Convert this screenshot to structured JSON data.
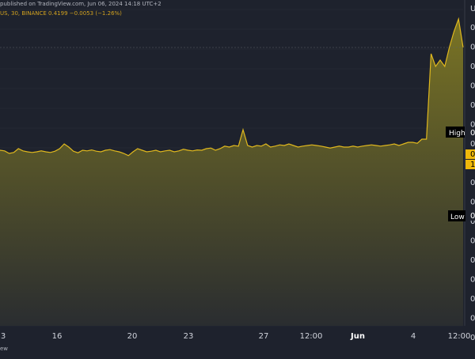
{
  "header": {
    "published": "published on TradingView.com, Jun 06, 2024 14:18 UTC+2",
    "symbol_line": "US, 30, BINANCE 0.4199 −0.0053 (−1.26%)"
  },
  "footer": {
    "text": "ew"
  },
  "colors": {
    "background": "#1e222d",
    "line": "#e0b81e",
    "area_top": "#7a7424",
    "area_bottom": "#2a2d30",
    "grid": "#2b2f3a",
    "axis_text": "#d1d4dc",
    "label_bg": "#000000",
    "label_text": "#ffffff",
    "price_tag": "#f0b90b"
  },
  "price_labels": {
    "high": "High",
    "low": "Low",
    "high_value": "0",
    "low_value": "0",
    "current_value_a": "0",
    "current_value_b": "1"
  },
  "price_scale": {
    "unit_label": "U",
    "ticks": [
      "0",
      "0",
      "0",
      "0",
      "0",
      "0",
      "0",
      "0",
      "0",
      "0",
      "0",
      "0",
      "0",
      "0",
      "0",
      "0",
      "0"
    ]
  },
  "chart_data": {
    "type": "area",
    "title": "",
    "xlabel": "",
    "ylabel": "",
    "x_ticks": [
      "3",
      "16",
      "20",
      "23",
      "27",
      "12:00",
      "Jun",
      "4",
      "12:00"
    ],
    "ylim": [
      0,
      1
    ],
    "series": [
      {
        "values": [
          0.555,
          0.553,
          0.545,
          0.548,
          0.56,
          0.553,
          0.55,
          0.548,
          0.55,
          0.553,
          0.55,
          0.548,
          0.552,
          0.56,
          0.575,
          0.565,
          0.552,
          0.547,
          0.555,
          0.553,
          0.556,
          0.552,
          0.55,
          0.555,
          0.557,
          0.553,
          0.55,
          0.545,
          0.538,
          0.55,
          0.56,
          0.555,
          0.55,
          0.552,
          0.555,
          0.55,
          0.553,
          0.555,
          0.55,
          0.553,
          0.558,
          0.555,
          0.553,
          0.556,
          0.555,
          0.56,
          0.562,
          0.555,
          0.56,
          0.568,
          0.565,
          0.57,
          0.568,
          0.62,
          0.57,
          0.565,
          0.57,
          0.568,
          0.575,
          0.565,
          0.568,
          0.572,
          0.57,
          0.575,
          0.57,
          0.565,
          0.568,
          0.57,
          0.572,
          0.57,
          0.568,
          0.565,
          0.562,
          0.565,
          0.568,
          0.565,
          0.565,
          0.568,
          0.565,
          0.568,
          0.57,
          0.572,
          0.57,
          0.568,
          0.57,
          0.572,
          0.575,
          0.57,
          0.575,
          0.58,
          0.58,
          0.577,
          0.59,
          0.59,
          0.86,
          0.82,
          0.84,
          0.82,
          0.88,
          0.93,
          0.97,
          0.88
        ]
      }
    ]
  }
}
